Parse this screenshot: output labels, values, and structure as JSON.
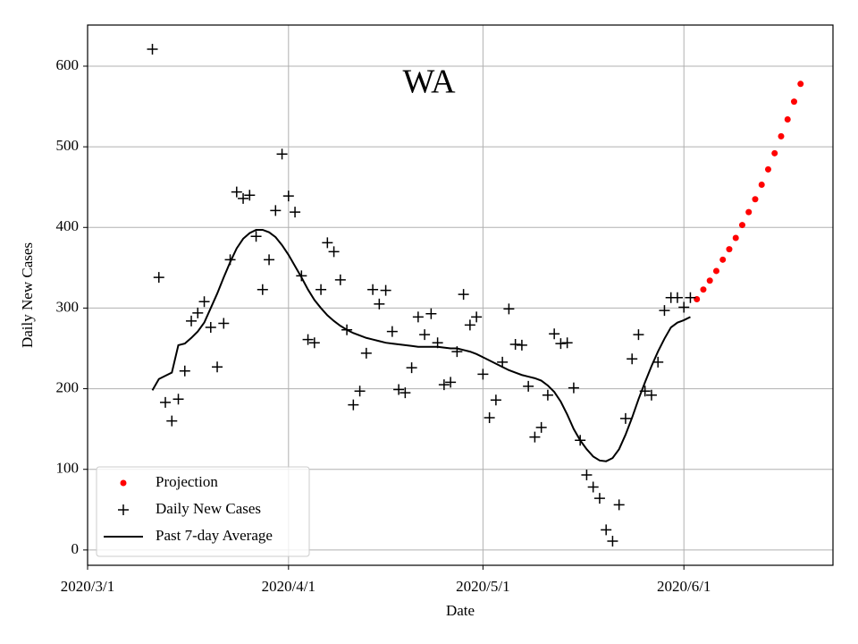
{
  "chart_data": {
    "type": "scatter",
    "title": "WA",
    "x_label": "Date",
    "y_label": "Daily New Cases",
    "xlim": [
      "2020-03-01",
      "2020-06-24"
    ],
    "xticks": [
      {
        "value": "2020-03-01",
        "label": "2020/3/1"
      },
      {
        "value": "2020-04-01",
        "label": "2020/4/1"
      },
      {
        "value": "2020-05-01",
        "label": "2020/5/1"
      },
      {
        "value": "2020-06-01",
        "label": "2020/6/1"
      }
    ],
    "ylim": [
      -19,
      651
    ],
    "yticks": [
      0,
      100,
      200,
      300,
      400,
      500,
      600
    ],
    "grid": true,
    "legend": "lower left",
    "x": [
      "2020-03-11",
      "2020-03-12",
      "2020-03-13",
      "2020-03-14",
      "2020-03-15",
      "2020-03-16",
      "2020-03-17",
      "2020-03-18",
      "2020-03-19",
      "2020-03-20",
      "2020-03-21",
      "2020-03-22",
      "2020-03-23",
      "2020-03-24",
      "2020-03-25",
      "2020-03-26",
      "2020-03-27",
      "2020-03-28",
      "2020-03-29",
      "2020-03-30",
      "2020-03-31",
      "2020-04-01",
      "2020-04-02",
      "2020-04-03",
      "2020-04-04",
      "2020-04-05",
      "2020-04-06",
      "2020-04-07",
      "2020-04-08",
      "2020-04-09",
      "2020-04-10",
      "2020-04-11",
      "2020-04-12",
      "2020-04-13",
      "2020-04-14",
      "2020-04-15",
      "2020-04-16",
      "2020-04-17",
      "2020-04-18",
      "2020-04-19",
      "2020-04-20",
      "2020-04-21",
      "2020-04-22",
      "2020-04-23",
      "2020-04-24",
      "2020-04-25",
      "2020-04-26",
      "2020-04-27",
      "2020-04-28",
      "2020-04-29",
      "2020-04-30",
      "2020-05-01",
      "2020-05-02",
      "2020-05-03",
      "2020-05-04",
      "2020-05-05",
      "2020-05-06",
      "2020-05-07",
      "2020-05-08",
      "2020-05-09",
      "2020-05-10",
      "2020-05-11",
      "2020-05-12",
      "2020-05-13",
      "2020-05-14",
      "2020-05-15",
      "2020-05-16",
      "2020-05-17",
      "2020-05-18",
      "2020-05-19",
      "2020-05-20",
      "2020-05-21",
      "2020-05-22",
      "2020-05-23",
      "2020-05-24",
      "2020-05-25",
      "2020-05-26",
      "2020-05-27",
      "2020-05-28",
      "2020-05-29",
      "2020-05-30",
      "2020-05-31",
      "2020-06-01",
      "2020-06-02"
    ],
    "series": [
      {
        "name": "Projection",
        "kind": "scatter",
        "marker": "o",
        "color": "#ff0000",
        "x": [
          "2020-06-03",
          "2020-06-04",
          "2020-06-05",
          "2020-06-06",
          "2020-06-07",
          "2020-06-08",
          "2020-06-09",
          "2020-06-10",
          "2020-06-11",
          "2020-06-12",
          "2020-06-13",
          "2020-06-14",
          "2020-06-15",
          "2020-06-16",
          "2020-06-17",
          "2020-06-18",
          "2020-06-19"
        ],
        "values": [
          311,
          323,
          334,
          346,
          360,
          373,
          387,
          403,
          419,
          435,
          453,
          472,
          492,
          513,
          534,
          556,
          578
        ]
      },
      {
        "name": "Daily New Cases",
        "kind": "scatter",
        "marker": "+",
        "color": "#000000",
        "values": [
          621,
          338,
          183,
          160,
          187,
          222,
          284,
          294,
          308,
          276,
          227,
          281,
          360,
          444,
          436,
          440,
          389,
          323,
          360,
          421,
          491,
          439,
          419,
          340,
          261,
          257,
          323,
          381,
          370,
          335,
          273,
          180,
          197,
          244,
          323,
          305,
          322,
          271,
          199,
          195,
          226,
          289,
          267,
          293,
          257,
          205,
          208,
          246,
          317,
          279,
          289,
          218,
          164,
          186,
          233,
          299,
          255,
          254,
          203,
          140,
          152,
          192,
          268,
          256,
          257,
          201,
          136,
          93,
          78,
          64,
          25,
          11,
          56,
          163,
          237,
          267,
          197,
          192,
          233,
          297,
          313,
          313,
          301,
          313
        ]
      },
      {
        "name": "Past 7-day Average",
        "kind": "line",
        "color": "#000000",
        "values": [
          198,
          212,
          216,
          220,
          254,
          256,
          263,
          271,
          282,
          300,
          318,
          338,
          357,
          374,
          386,
          393,
          397,
          397,
          394,
          388,
          378,
          366,
          352,
          338,
          323,
          310,
          300,
          291,
          284,
          278,
          273,
          269,
          266,
          263,
          261,
          259,
          257,
          256,
          255,
          254,
          253,
          252,
          252,
          252,
          252,
          251,
          250,
          250,
          248,
          246,
          243,
          239,
          235,
          231,
          227,
          223,
          220,
          217,
          215,
          213,
          210,
          204,
          196,
          184,
          168,
          150,
          136,
          125,
          116,
          111,
          110,
          114,
          125,
          143,
          164,
          187,
          208,
          228,
          246,
          262,
          276,
          282,
          285,
          289
        ]
      }
    ]
  }
}
